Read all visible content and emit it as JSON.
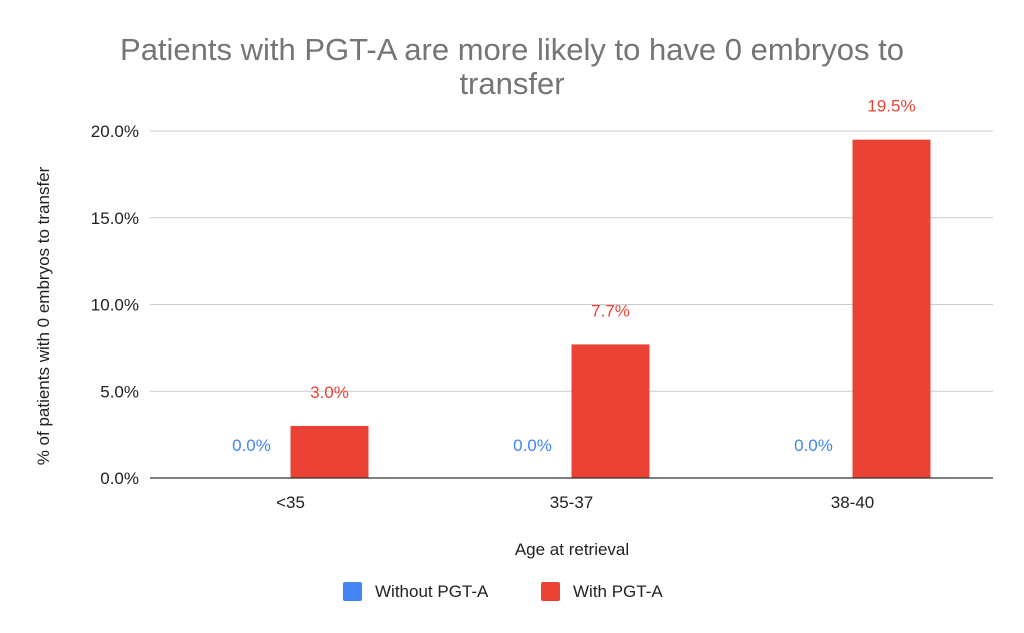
{
  "chart_data": {
    "type": "bar",
    "title_lines": [
      "Patients with PGT-A are more likely to have 0 embryos to",
      "transfer"
    ],
    "xlabel": "Age at retrieval",
    "ylabel": "% of patients with 0 embryos to transfer",
    "categories": [
      "<35",
      "35-37",
      "38-40"
    ],
    "ylim": [
      0,
      20
    ],
    "yticks": [
      0,
      5,
      10,
      15,
      20
    ],
    "ytick_labels": [
      "0.0%",
      "5.0%",
      "10.0%",
      "15.0%",
      "20.0%"
    ],
    "grid": true,
    "legend_position": "bottom",
    "series": [
      {
        "name": "Without PGT-A",
        "color": "#4285f4",
        "values": [
          0.0,
          0.0,
          0.0
        ],
        "labels": [
          "0.0%",
          "0.0%",
          "0.0%"
        ]
      },
      {
        "name": "With PGT-A",
        "color": "#ea4335",
        "values": [
          3.0,
          7.7,
          19.5
        ],
        "labels": [
          "3.0%",
          "7.7%",
          "19.5%"
        ]
      }
    ]
  }
}
